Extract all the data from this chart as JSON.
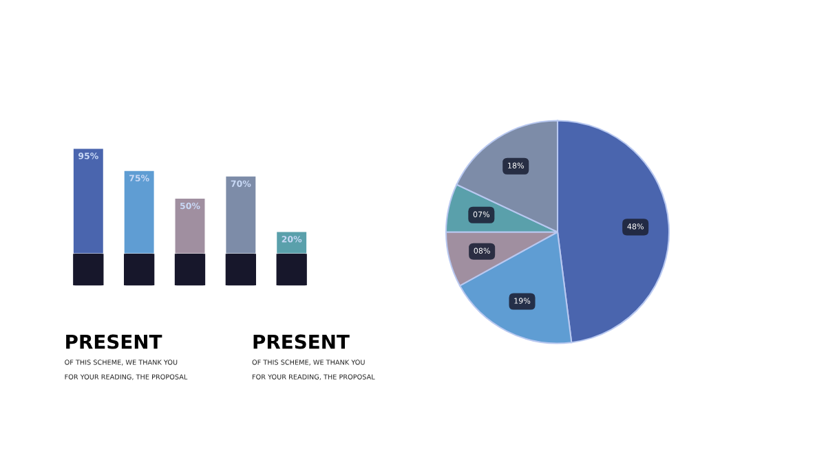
{
  "chart_data": [
    {
      "type": "bar",
      "categories": [
        null,
        null,
        null,
        null,
        null
      ],
      "values": [
        95,
        75,
        50,
        70,
        20
      ],
      "colors": [
        "#4a65ae",
        "#5f9dd3",
        "#a08fa0",
        "#7d8ca8",
        "#5aa0ab"
      ],
      "value_labels": [
        "95%",
        "75%",
        "50%",
        "70%",
        "20%"
      ],
      "annotations": [
        "PRESENT",
        "OF THIS SCHEME, WE THANK YOU\nFOR YOUR READING, THE PROPOSAL",
        "PRESENT",
        "OF THIS SCHEME, WE THANK YOU\nFOR YOUR READING, THE PROPOSAL"
      ]
    },
    {
      "type": "pie",
      "categories": [
        null,
        null,
        null,
        null,
        null
      ],
      "values": [
        48,
        19,
        8,
        7,
        18
      ],
      "colors": [
        "#4a65ae",
        "#5f9dd3",
        "#a08fa0",
        "#5aa0ab",
        "#7d8ca8"
      ],
      "value_labels": [
        "48%",
        "19%",
        "08%",
        "07%",
        "18%"
      ]
    }
  ]
}
